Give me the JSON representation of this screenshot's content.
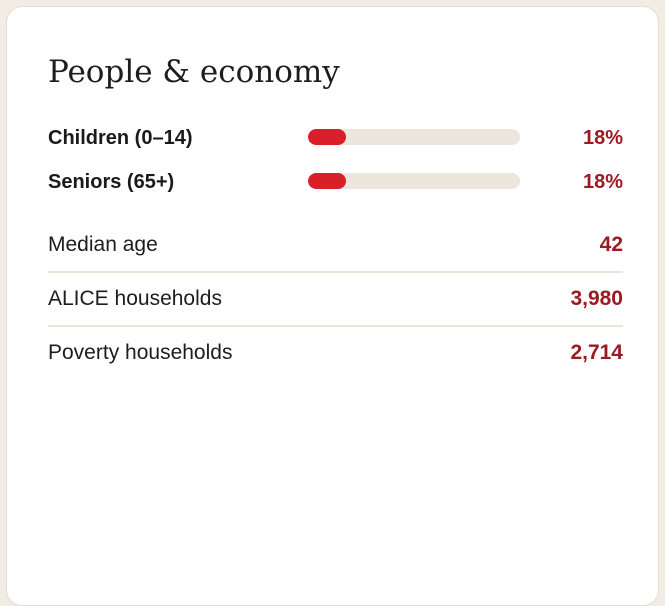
{
  "card": {
    "title": "People & economy"
  },
  "age_bars": [
    {
      "label": "Children (0–14)",
      "value_text": "18%",
      "fraction": 0.18
    },
    {
      "label": "Seniors (65+)",
      "value_text": "18%",
      "fraction": 0.18
    }
  ],
  "stats": [
    {
      "label": "Median age",
      "value": "42"
    },
    {
      "label": "ALICE households",
      "value": "3,980"
    },
    {
      "label": "Poverty households",
      "value": "2,714"
    }
  ],
  "colors": {
    "accent_value": "#9b1b22",
    "bar_fill": "#d81f2a",
    "bar_track": "#ece6dd",
    "divider": "#ece4d8"
  }
}
